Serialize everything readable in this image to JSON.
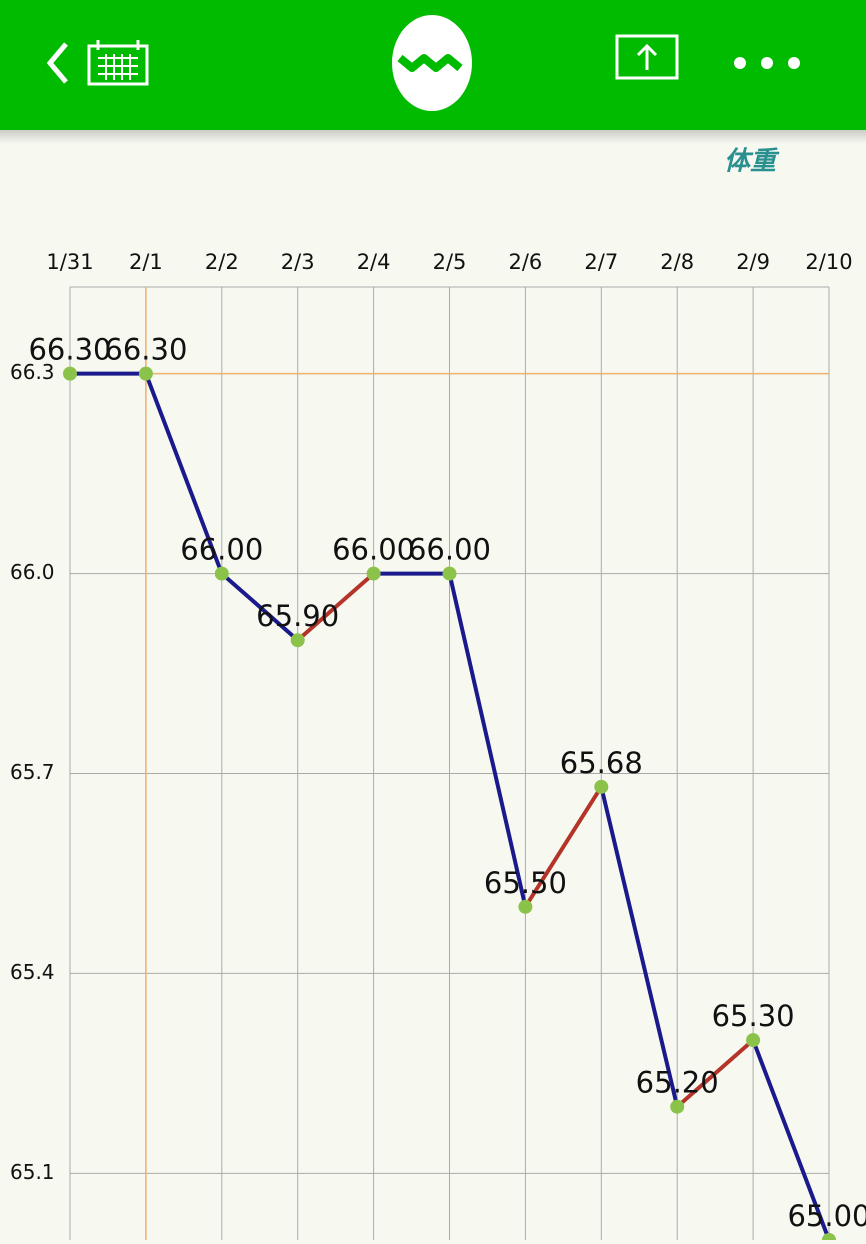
{
  "header": {
    "section_title": "体重"
  },
  "chart_data": {
    "type": "line",
    "categories": [
      "1/31",
      "2/1",
      "2/2",
      "2/3",
      "2/4",
      "2/5",
      "2/6",
      "2/7",
      "2/8",
      "2/9",
      "2/10"
    ],
    "series": [
      {
        "color": "#1a1a8c",
        "rise_color": "#b5342a",
        "marker_color": "#8bc34a",
        "values": [
          66.3,
          66.3,
          66.0,
          65.9,
          66.0,
          66.0,
          65.5,
          65.68,
          65.2,
          65.3,
          65.0
        ],
        "value_labels": [
          "66.30",
          "66.30",
          "66.00",
          "65.90",
          "66.00",
          "66.00",
          "65.50",
          "65.68",
          "65.20",
          "65.30",
          "65.00"
        ]
      }
    ],
    "ylim": [
      65.0,
      66.43
    ],
    "yticks": [
      {
        "value": 65.1,
        "label": "65.1"
      },
      {
        "value": 65.4,
        "label": "65.4"
      },
      {
        "value": 65.7,
        "label": "65.7"
      },
      {
        "value": 66,
        "label": "66.0"
      },
      {
        "value": 66.3,
        "label": "66.3"
      }
    ],
    "grid": true,
    "crosshair_index": 1,
    "crosshair_color": "#f0b070"
  }
}
